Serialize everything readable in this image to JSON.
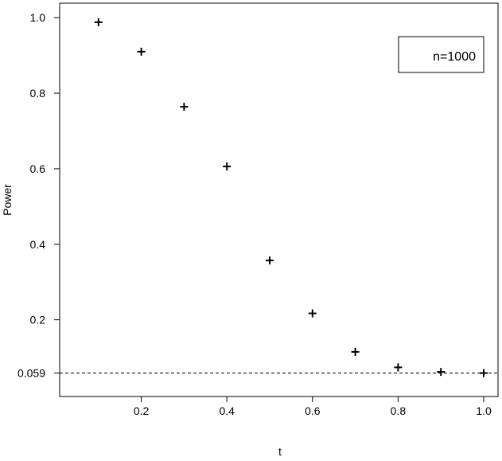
{
  "chart_data": {
    "type": "scatter",
    "title": "",
    "xlabel": "t",
    "ylabel": "Power",
    "xlim": [
      0.01,
      1.03
    ],
    "ylim": [
      -0.0,
      1.04
    ],
    "x_ticks": [
      0.2,
      0.4,
      0.6,
      0.8,
      1.0
    ],
    "x_tick_labels": [
      "0.2",
      "0.4",
      "0.6",
      "0.8",
      "1.0"
    ],
    "y_ticks": [
      0.059,
      0.2,
      0.4,
      0.6,
      0.8,
      1.0
    ],
    "y_tick_labels": [
      "0.059",
      "0.2",
      "0.4",
      "0.6",
      "0.8",
      "1.0"
    ],
    "reference_line": {
      "y": 0.059,
      "style": "dashed"
    },
    "marker": "plus",
    "grid": false,
    "legend_placement": "top-right",
    "series": [
      {
        "legend_label": "n=1000",
        "x": [
          0.1,
          0.2,
          0.3,
          0.4,
          0.5,
          0.6,
          0.7,
          0.8,
          0.9,
          1.0
        ],
        "y": [
          0.988,
          0.91,
          0.764,
          0.606,
          0.357,
          0.217,
          0.115,
          0.074,
          0.062,
          0.059
        ]
      }
    ]
  }
}
